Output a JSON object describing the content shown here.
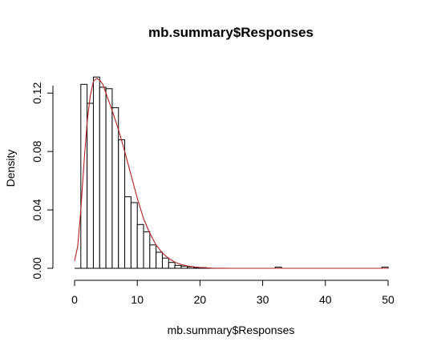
{
  "chart_data": {
    "type": "bar",
    "title": "mb.summary$Responses",
    "xlabel": "mb.summary$Responses",
    "ylabel": "Density",
    "xlim": [
      0,
      50
    ],
    "ylim": [
      0,
      0.13
    ],
    "x_ticks": [
      "0",
      "10",
      "20",
      "30",
      "40",
      "50"
    ],
    "y_ticks": [
      "0.00",
      "0.04",
      "0.08",
      "0.12"
    ],
    "bin_width": 1,
    "histogram": {
      "bin_starts": [
        1,
        2,
        3,
        4,
        5,
        6,
        7,
        8,
        9,
        10,
        11,
        12,
        13,
        14,
        15,
        16,
        17,
        18,
        19,
        20,
        32,
        49
      ],
      "density": [
        0.126,
        0.113,
        0.131,
        0.124,
        0.123,
        0.11,
        0.088,
        0.049,
        0.045,
        0.03,
        0.025,
        0.016,
        0.011,
        0.007,
        0.004,
        0.002,
        0.0015,
        0.001,
        0.0005,
        0.0005,
        0.0008,
        0.0008
      ]
    },
    "density_curve": {
      "color": "#b22222",
      "x": [
        0,
        0.5,
        1,
        1.5,
        2,
        2.5,
        3,
        3.5,
        4,
        4.5,
        5,
        6,
        7,
        8,
        9,
        10,
        11,
        12,
        13,
        14,
        15,
        16,
        17,
        18,
        19,
        20,
        21,
        22,
        25,
        30,
        40,
        50
      ],
      "y": [
        0.005,
        0.015,
        0.04,
        0.072,
        0.1,
        0.118,
        0.128,
        0.13,
        0.129,
        0.126,
        0.12,
        0.108,
        0.095,
        0.08,
        0.064,
        0.048,
        0.034,
        0.024,
        0.016,
        0.0105,
        0.0068,
        0.0042,
        0.0026,
        0.0016,
        0.001,
        0.0006,
        0.0003,
        0.0001,
        0,
        0,
        0,
        0
      ]
    }
  }
}
